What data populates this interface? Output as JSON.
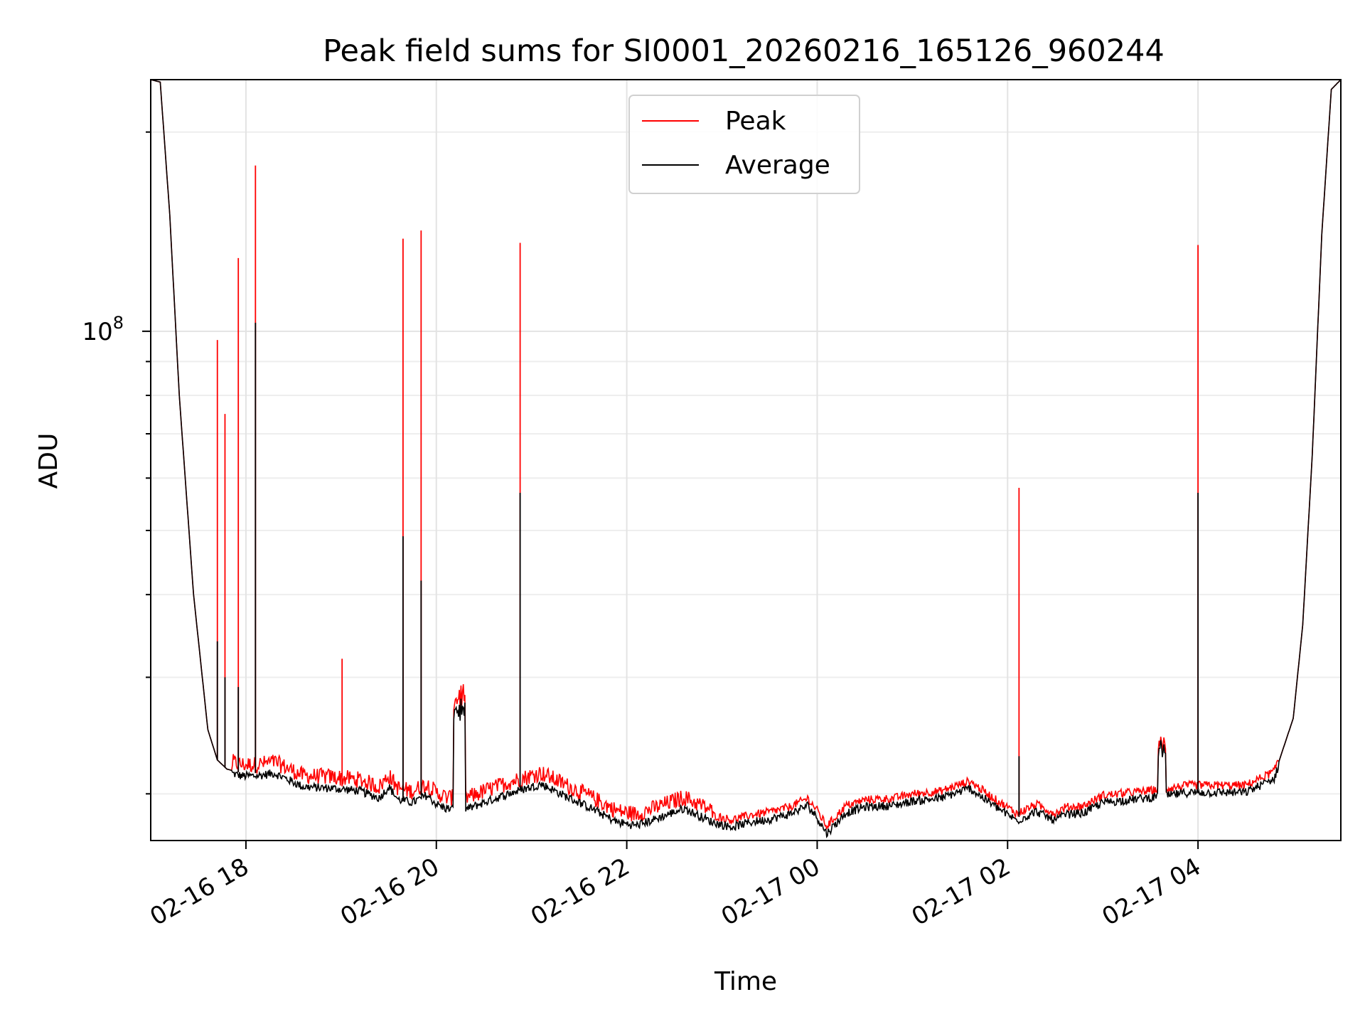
{
  "chart_data": {
    "type": "line",
    "title": "Peak field sums for SI0001_20260216_165126_960244",
    "xlabel": "Time",
    "ylabel": "ADU",
    "y_scale": "log",
    "ylim": [
      17000000,
      240000000
    ],
    "x_unit": "hours since 02-16 17:00",
    "xlim": [
      0,
      12.5
    ],
    "x_ticks": [
      {
        "value": 1,
        "label": "02-16 18"
      },
      {
        "value": 3,
        "label": "02-16 20"
      },
      {
        "value": 5,
        "label": "02-16 22"
      },
      {
        "value": 7,
        "label": "02-17 00"
      },
      {
        "value": 9,
        "label": "02-17 02"
      },
      {
        "value": 11,
        "label": "02-17 04"
      }
    ],
    "y_major_ticks": [
      {
        "value": 100000000,
        "base": "10",
        "exponent": "8"
      }
    ],
    "y_minor_ticks": [
      20000000,
      30000000,
      40000000,
      50000000,
      60000000,
      70000000,
      80000000,
      90000000,
      200000000
    ],
    "grid": true,
    "legend": {
      "position": "upper-center",
      "entries": [
        "Peak",
        "Average"
      ]
    },
    "colors": {
      "Peak": "#ff0000",
      "Average": "#000000"
    },
    "baseline_series": {
      "name": "Average",
      "x": [
        0,
        0.1,
        0.2,
        0.3,
        0.45,
        0.6,
        0.7,
        0.8,
        0.95,
        1.1,
        1.3,
        1.45,
        1.6,
        1.9,
        2.2,
        2.4,
        2.5,
        2.6,
        2.75,
        2.9,
        3.0,
        3.1,
        3.3,
        3.5,
        3.8,
        4.1,
        4.4,
        4.6,
        4.9,
        5.1,
        5.3,
        5.6,
        5.9,
        6.1,
        6.3,
        6.5,
        6.7,
        6.9,
        7.0,
        7.1,
        7.3,
        7.5,
        7.8,
        8.0,
        8.3,
        8.6,
        8.9,
        9.1,
        9.3,
        9.5,
        9.6,
        9.8,
        10.0,
        10.3,
        10.6,
        10.9,
        11.2,
        11.5,
        11.8,
        12.0,
        12.1,
        12.2,
        12.3,
        12.4,
        12.5
      ],
      "y": [
        240000000,
        238000000,
        150000000,
        80000000,
        40000000,
        25000000,
        22500000,
        21800000,
        21500000,
        21500000,
        21700000,
        21200000,
        20700000,
        20600000,
        20400000,
        19900000,
        20700000,
        19800000,
        19600000,
        20100000,
        19500000,
        19200000,
        19100000,
        19600000,
        20300000,
        20900000,
        19900000,
        19300000,
        18300000,
        18100000,
        18500000,
        19200000,
        18300000,
        18000000,
        18300000,
        18500000,
        18800000,
        19400000,
        18600000,
        17600000,
        18900000,
        19300000,
        19400000,
        19700000,
        19900000,
        20600000,
        19200000,
        18400000,
        19000000,
        18400000,
        18800000,
        18900000,
        19600000,
        19800000,
        20000000,
        20300000,
        20300000,
        20300000,
        21300000,
        26000000,
        36000000,
        65000000,
        140000000,
        232000000,
        240000000
      ]
    },
    "spikes": [
      {
        "x": 0.7,
        "peak": 97000000,
        "average": 34000000
      },
      {
        "x": 0.78,
        "peak": 75000000,
        "average": 30000000
      },
      {
        "x": 0.92,
        "peak": 129000000,
        "average": 29000000
      },
      {
        "x": 1.1,
        "peak": 178000000,
        "average": 103000000
      },
      {
        "x": 2.01,
        "peak": 32000000
      },
      {
        "x": 2.65,
        "peak": 138000000,
        "average": 49000000
      },
      {
        "x": 2.84,
        "peak": 142000000,
        "average": 42000000
      },
      {
        "x": 3.88,
        "peak": 136000000,
        "average": 57000000
      },
      {
        "x": 9.12,
        "peak": 58000000,
        "average": 22800000
      },
      {
        "x": 11.0,
        "peak": 135000000,
        "average": 57000000
      }
    ],
    "bumps": [
      {
        "x_start": 3.18,
        "x_end": 3.3,
        "level": 27000000
      },
      {
        "x_start": 10.58,
        "x_end": 10.66,
        "level": 23500000
      }
    ]
  }
}
